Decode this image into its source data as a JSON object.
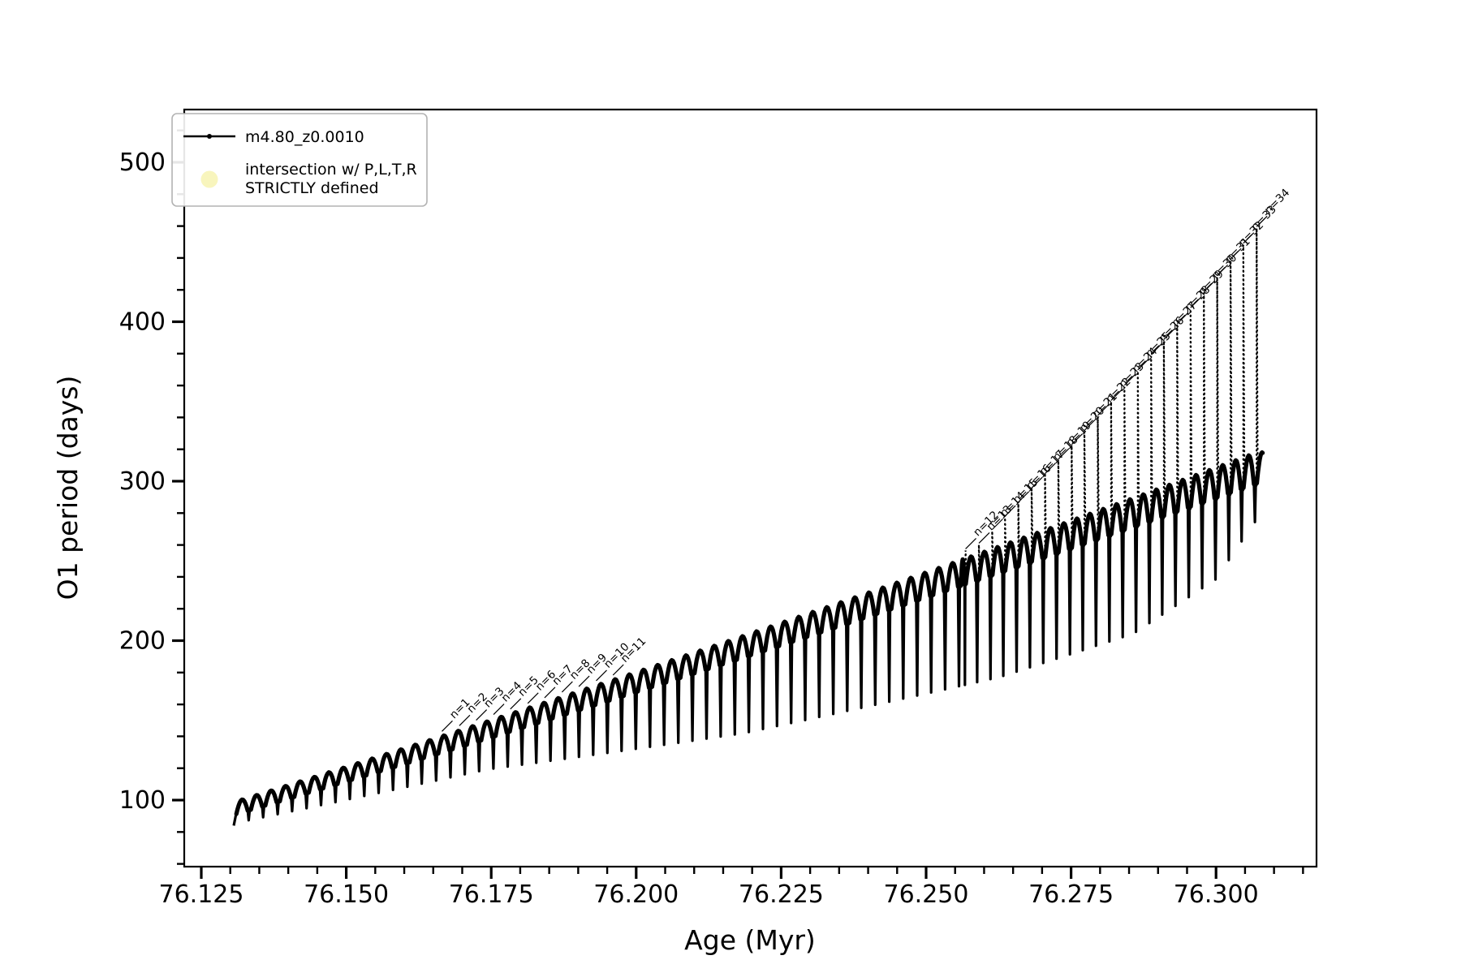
{
  "figure": {
    "background": "#ffffff"
  },
  "chart_data": {
    "type": "line",
    "title": "",
    "xlabel": "Age (Myr)",
    "ylabel": "O1 period (days)",
    "xlim": [
      76.1221,
      76.3173
    ],
    "ylim": [
      58,
      533
    ],
    "grid": false,
    "legend_position": "upper left",
    "x_ticks": {
      "major": [
        {
          "value": 76.125,
          "label": "76.125"
        },
        {
          "value": 76.15,
          "label": "76.150"
        },
        {
          "value": 76.175,
          "label": "76.175"
        },
        {
          "value": 76.2,
          "label": "76.200"
        },
        {
          "value": 76.225,
          "label": "76.225"
        },
        {
          "value": 76.25,
          "label": "76.250"
        },
        {
          "value": 76.275,
          "label": "76.275"
        },
        {
          "value": 76.3,
          "label": "76.300"
        }
      ],
      "minor_step": 0.005
    },
    "y_ticks": {
      "major": [
        {
          "value": 100,
          "label": "100"
        },
        {
          "value": 200,
          "label": "200"
        },
        {
          "value": 300,
          "label": "300"
        },
        {
          "value": 400,
          "label": "400"
        },
        {
          "value": 500,
          "label": "500"
        }
      ],
      "minor_step": 20
    },
    "legend": {
      "items": [
        {
          "label": "m4.80_z0.0010",
          "marker": "line-dot",
          "color": "#000000"
        },
        {
          "label_line1": "intersection w/ P,L,T,R",
          "label_line2": "STRICTLY defined",
          "marker": "dot",
          "color": "#f8f5bd"
        }
      ]
    },
    "series": [
      {
        "name": "m4.80_z0.0010",
        "color": "#000000",
        "style": "pulse-sawtooth",
        "model": {
          "age_start": 76.1306,
          "age_end": 76.3085,
          "period_start": 84,
          "period_end": 320,
          "crest_envelope": {
            "s0": 76.13,
            "span": 0.177,
            "base": 98,
            "linear": 200,
            "quad": 20
          },
          "dip_gap_points": [
            [
              0,
              13
            ],
            [
              0.25,
              30
            ],
            [
              0.5,
              61
            ],
            [
              0.75,
              82
            ],
            [
              0.88,
              85
            ],
            [
              0.96,
              70
            ],
            [
              1,
              42
            ]
          ],
          "dome_amplitude": {
            "base": 13,
            "growth": 19
          },
          "cycle_spacing": {
            "start": 0.0025,
            "end": 0.0024,
            "until": 76.256
          },
          "spike_extra": {
            "from": 76.2568,
            "lin": 2400,
            "quad": 8000,
            "min": 5
          }
        }
      }
    ],
    "annotations": {
      "left": [
        {
          "label": "n=1",
          "age": 76.1665
        },
        {
          "label": "n=2",
          "age": 76.1695
        },
        {
          "label": "n=3",
          "age": 76.1724
        },
        {
          "label": "n=4",
          "age": 76.1754
        },
        {
          "label": "n=5",
          "age": 76.1783
        },
        {
          "label": "n=6",
          "age": 76.1813
        },
        {
          "label": "n=7",
          "age": 76.1842
        },
        {
          "label": "n=8",
          "age": 76.1872
        },
        {
          "label": "n=9",
          "age": 76.1901
        },
        {
          "label": "n=10",
          "age": 76.1931
        },
        {
          "label": "n=11",
          "age": 76.196
        }
      ],
      "right": [
        {
          "label": "n=12",
          "age": 76.2568
        },
        {
          "label": "n=13",
          "age": 76.2591
        },
        {
          "label": "n=14",
          "age": 76.2614
        },
        {
          "label": "n=15",
          "age": 76.2636
        },
        {
          "label": "n=16",
          "age": 76.2659
        },
        {
          "label": "n=17",
          "age": 76.2682
        },
        {
          "label": "n=18",
          "age": 76.2705
        },
        {
          "label": "n=19",
          "age": 76.2728
        },
        {
          "label": "n=20",
          "age": 76.2751
        },
        {
          "label": "n=21",
          "age": 76.2773
        },
        {
          "label": "n=22",
          "age": 76.2796
        },
        {
          "label": "n=23",
          "age": 76.2819
        },
        {
          "label": "n=24",
          "age": 76.2842
        },
        {
          "label": "n=25",
          "age": 76.2865
        },
        {
          "label": "n=26",
          "age": 76.2888
        },
        {
          "label": "n=27",
          "age": 76.291
        },
        {
          "label": "n=28",
          "age": 76.2933
        },
        {
          "label": "n=29",
          "age": 76.2956
        },
        {
          "label": "n=30",
          "age": 76.2979
        },
        {
          "label": "n=31",
          "age": 76.3002
        },
        {
          "label": "n=32",
          "age": 76.3025
        },
        {
          "label": "n=33",
          "age": 76.3047
        },
        {
          "label": "n=34",
          "age": 76.307
        }
      ]
    }
  }
}
